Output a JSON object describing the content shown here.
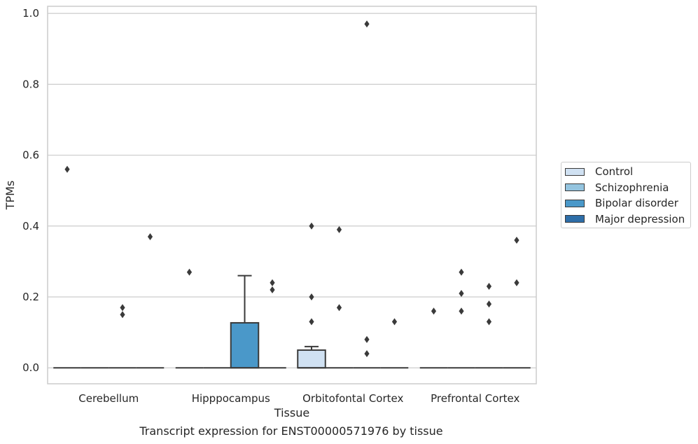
{
  "caption": "Transcript expression for ENST00000571976 by tissue",
  "colors": {
    "Control": "#d0e1f2",
    "Schizophrenia": "#94c4df",
    "Bipolar disorder": "#4a98c9",
    "Major depression": "#2e6ea8"
  },
  "chart_data": {
    "type": "box",
    "xlabel": "Tissue",
    "ylabel": "TPMs",
    "ylim": [
      -0.045,
      1.02
    ],
    "yticks": [
      0.0,
      0.2,
      0.4,
      0.6,
      0.8,
      1.0
    ],
    "ytick_labels": [
      "0.0",
      "0.2",
      "0.4",
      "0.6",
      "0.8",
      "1.0"
    ],
    "grid": true,
    "legend_position": "right",
    "categories": [
      "Cerebellum",
      "Hipppocampus",
      "Orbitofontal Cortex",
      "Prefrontal Cortex"
    ],
    "series": [
      {
        "name": "Control",
        "boxes": [
          {
            "q1": 0,
            "median": 0,
            "q3": 0,
            "whisker_low": 0,
            "whisker_high": 0,
            "outliers": [
              0.56
            ]
          },
          {
            "q1": 0,
            "median": 0,
            "q3": 0,
            "whisker_low": 0,
            "whisker_high": 0,
            "outliers": [
              0.27
            ]
          },
          {
            "q1": 0,
            "median": 0,
            "q3": 0.05,
            "whisker_low": 0,
            "whisker_high": 0.06,
            "outliers": [
              0.4,
              0.2,
              0.13
            ]
          },
          {
            "q1": 0,
            "median": 0,
            "q3": 0,
            "whisker_low": 0,
            "whisker_high": 0,
            "outliers": [
              0.16
            ]
          }
        ]
      },
      {
        "name": "Schizophrenia",
        "boxes": [
          {
            "q1": 0,
            "median": 0,
            "q3": 0,
            "whisker_low": 0,
            "whisker_high": 0,
            "outliers": []
          },
          {
            "q1": 0,
            "median": 0,
            "q3": 0,
            "whisker_low": 0,
            "whisker_high": 0,
            "outliers": []
          },
          {
            "q1": 0,
            "median": 0,
            "q3": 0,
            "whisker_low": 0,
            "whisker_high": 0,
            "outliers": [
              0.39,
              0.17
            ]
          },
          {
            "q1": 0,
            "median": 0,
            "q3": 0,
            "whisker_low": 0,
            "whisker_high": 0,
            "outliers": [
              0.27,
              0.21,
              0.16
            ]
          }
        ]
      },
      {
        "name": "Bipolar disorder",
        "boxes": [
          {
            "q1": 0,
            "median": 0,
            "q3": 0,
            "whisker_low": 0,
            "whisker_high": 0,
            "outliers": [
              0.17,
              0.15
            ]
          },
          {
            "q1": 0,
            "median": 0,
            "q3": 0.127,
            "whisker_low": 0,
            "whisker_high": 0.26,
            "outliers": []
          },
          {
            "q1": 0,
            "median": 0,
            "q3": 0,
            "whisker_low": 0,
            "whisker_high": 0,
            "outliers": [
              0.97,
              0.08,
              0.04
            ]
          },
          {
            "q1": 0,
            "median": 0,
            "q3": 0,
            "whisker_low": 0,
            "whisker_high": 0,
            "outliers": [
              0.23,
              0.18,
              0.13
            ]
          }
        ]
      },
      {
        "name": "Major depression",
        "boxes": [
          {
            "q1": 0,
            "median": 0,
            "q3": 0,
            "whisker_low": 0,
            "whisker_high": 0,
            "outliers": [
              0.37
            ]
          },
          {
            "q1": 0,
            "median": 0,
            "q3": 0,
            "whisker_low": 0,
            "whisker_high": 0,
            "outliers": [
              0.24,
              0.22
            ]
          },
          {
            "q1": 0,
            "median": 0,
            "q3": 0,
            "whisker_low": 0,
            "whisker_high": 0,
            "outliers": [
              0.13
            ]
          },
          {
            "q1": 0,
            "median": 0,
            "q3": 0,
            "whisker_low": 0,
            "whisker_high": 0,
            "outliers": [
              0.36,
              0.24
            ]
          }
        ]
      }
    ]
  }
}
